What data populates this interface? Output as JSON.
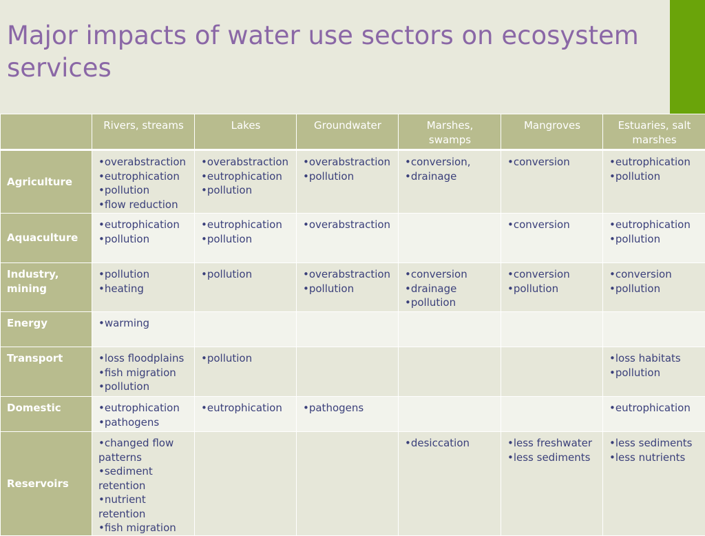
{
  "slide": {
    "title": "Major impacts of water use sectors on ecosystem services"
  },
  "colors": {
    "title": "#8a67a6",
    "accent_bar": "#6aa40a",
    "header_bg": "#b8bc8e",
    "row_odd": "#e6e7d9",
    "row_even": "#f2f3ec",
    "cell_text": "#3a3f7a"
  },
  "table": {
    "corner": "",
    "columns": [
      "Rivers, streams",
      "Lakes",
      "Groundwater",
      "Marshes, swamps",
      "Mangroves",
      "Estuaries, salt marshes"
    ],
    "rows": [
      {
        "sector": "Agriculture",
        "cells": [
          [
            "•overabstraction",
            "•eutrophication",
            "•pollution",
            "•flow reduction"
          ],
          [
            "•overabstraction",
            "•eutrophication",
            "•pollution"
          ],
          [
            "•overabstraction",
            "•pollution"
          ],
          [
            "•conversion,",
            "•drainage"
          ],
          [
            "•conversion"
          ],
          [
            "•eutrophication",
            "•pollution"
          ]
        ]
      },
      {
        "sector": "Aquaculture",
        "cells": [
          [
            "•eutrophication",
            "•pollution"
          ],
          [
            "•eutrophication",
            "•pollution"
          ],
          [
            "•overabstraction"
          ],
          [],
          [
            "•conversion"
          ],
          [
            "•eutrophication",
            "•pollution"
          ]
        ]
      },
      {
        "sector": "Industry, mining",
        "cells": [
          [
            "•pollution",
            "•heating"
          ],
          [
            "•pollution"
          ],
          [
            "•overabstraction",
            "•pollution"
          ],
          [
            "•conversion",
            "•drainage",
            "•pollution"
          ],
          [
            "•conversion",
            "•pollution"
          ],
          [
            "•conversion",
            "•pollution"
          ]
        ]
      },
      {
        "sector": "Energy",
        "cells": [
          [
            "•warming"
          ],
          [],
          [],
          [],
          [],
          []
        ]
      },
      {
        "sector": "Transport",
        "cells": [
          [
            "•loss floodplains",
            "•fish migration",
            "•pollution"
          ],
          [
            "•pollution"
          ],
          [],
          [],
          [],
          [
            "•loss habitats",
            "•pollution"
          ]
        ]
      },
      {
        "sector": "Domestic",
        "cells": [
          [
            "•eutrophication",
            "•pathogens"
          ],
          [
            "•eutrophication"
          ],
          [
            "•pathogens"
          ],
          [],
          [],
          [
            "•eutrophication"
          ]
        ]
      },
      {
        "sector": "Reservoirs",
        "cells": [
          [
            "•changed flow patterns",
            "•sediment retention",
            "•nutrient retention",
            "•fish migration"
          ],
          [],
          [],
          [
            "•desiccation"
          ],
          [
            "•less freshwater",
            "•less sediments"
          ],
          [
            "•less sediments",
            "•less nutrients"
          ]
        ]
      }
    ]
  }
}
